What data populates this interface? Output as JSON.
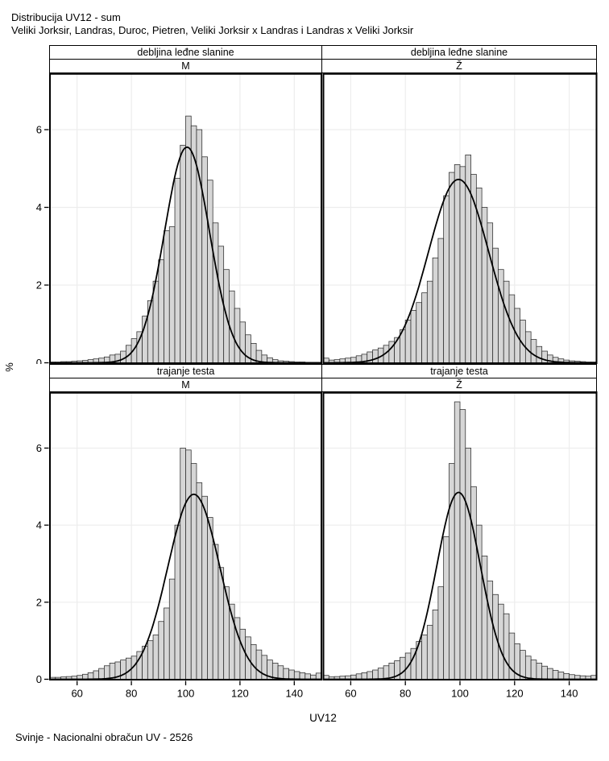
{
  "title": "Distribucija UV12 - sum",
  "subtitle": "Veliki Jorksir, Landras, Duroc, Pietren, Veliki Jorksir x Landras i Landras x Veliki Jorksir",
  "footer": "Svinje - Nacionalni obračun UV - 2526",
  "axes": {
    "x_label": "UV12",
    "y_label": "%",
    "x_ticks": [
      60,
      80,
      100,
      120,
      140
    ],
    "y_ticks": [
      0,
      2,
      4,
      6
    ],
    "x_range": [
      50,
      150
    ],
    "y_max": 7.43,
    "grid": "on"
  },
  "colors": {
    "bar_fill": "#d6d6d6",
    "bar_stroke": "#2b2b2b",
    "curve": "#000000",
    "grid": "#ededed",
    "border": "#000000",
    "background": "#ffffff"
  },
  "chart_data": [
    {
      "type": "bar",
      "subtype": "histogram-with-normal-curve",
      "panel": "top-left",
      "row_label": "debljina leđne slanine",
      "col_label": "M",
      "bin_start": 50,
      "bin_width": 2,
      "values": [
        0.02,
        0.02,
        0.03,
        0.03,
        0.04,
        0.05,
        0.06,
        0.08,
        0.1,
        0.12,
        0.15,
        0.2,
        0.22,
        0.3,
        0.45,
        0.62,
        0.8,
        1.2,
        1.6,
        2.1,
        2.65,
        3.4,
        3.5,
        4.75,
        5.6,
        6.35,
        6.1,
        6.0,
        5.3,
        4.7,
        3.6,
        3.0,
        2.4,
        1.85,
        1.4,
        1.05,
        0.72,
        0.5,
        0.32,
        0.2,
        0.13,
        0.08,
        0.05,
        0.04,
        0.03,
        0.02,
        0.02,
        0.01,
        0.01,
        0.01
      ],
      "curve": {
        "mean": 100.5,
        "sd": 8.3,
        "peak": 5.55
      }
    },
    {
      "type": "bar",
      "subtype": "histogram-with-normal-curve",
      "panel": "top-right",
      "row_label": "debljina leđne slanine",
      "col_label": "Ž",
      "bin_start": 50,
      "bin_width": 2,
      "values": [
        0.12,
        0.07,
        0.08,
        0.1,
        0.12,
        0.14,
        0.18,
        0.22,
        0.28,
        0.33,
        0.38,
        0.45,
        0.55,
        0.65,
        0.85,
        1.1,
        1.35,
        1.55,
        1.8,
        2.1,
        2.7,
        3.2,
        4.3,
        4.9,
        5.1,
        5.05,
        5.35,
        4.85,
        4.5,
        4.0,
        3.6,
        2.95,
        2.4,
        2.1,
        1.75,
        1.4,
        1.1,
        0.8,
        0.6,
        0.42,
        0.3,
        0.2,
        0.14,
        0.1,
        0.07,
        0.05,
        0.04,
        0.03,
        0.02,
        0.02
      ],
      "curve": {
        "mean": 99.5,
        "sd": 11.0,
        "peak": 4.72
      }
    },
    {
      "type": "bar",
      "subtype": "histogram-with-normal-curve",
      "panel": "bottom-left",
      "row_label": "trajanje testa",
      "col_label": "M",
      "bin_start": 50,
      "bin_width": 2,
      "values": [
        0.05,
        0.05,
        0.06,
        0.07,
        0.08,
        0.1,
        0.13,
        0.17,
        0.22,
        0.28,
        0.35,
        0.42,
        0.45,
        0.5,
        0.55,
        0.6,
        0.72,
        0.86,
        1.0,
        1.15,
        1.5,
        1.85,
        2.6,
        4.0,
        6.0,
        5.95,
        5.6,
        5.1,
        4.75,
        4.2,
        3.5,
        2.9,
        2.4,
        1.95,
        1.6,
        1.3,
        1.1,
        0.9,
        0.76,
        0.62,
        0.5,
        0.42,
        0.35,
        0.28,
        0.24,
        0.2,
        0.17,
        0.14,
        0.11,
        0.16
      ],
      "curve": {
        "mean": 103.0,
        "sd": 9.6,
        "peak": 4.8
      }
    },
    {
      "type": "bar",
      "subtype": "histogram-with-normal-curve",
      "panel": "bottom-right",
      "row_label": "trajanje testa",
      "col_label": "Ž",
      "bin_start": 50,
      "bin_width": 2,
      "values": [
        0.1,
        0.06,
        0.07,
        0.08,
        0.09,
        0.11,
        0.14,
        0.17,
        0.2,
        0.24,
        0.29,
        0.35,
        0.42,
        0.48,
        0.57,
        0.68,
        0.8,
        0.98,
        1.15,
        1.4,
        1.8,
        2.4,
        3.7,
        5.6,
        7.2,
        7.0,
        6.0,
        5.0,
        4.0,
        3.2,
        2.55,
        2.2,
        1.95,
        1.7,
        1.2,
        0.92,
        0.75,
        0.6,
        0.5,
        0.42,
        0.34,
        0.28,
        0.23,
        0.19,
        0.15,
        0.12,
        0.1,
        0.09,
        0.08,
        0.1
      ],
      "curve": {
        "mean": 99.5,
        "sd": 8.0,
        "peak": 4.85
      }
    }
  ]
}
